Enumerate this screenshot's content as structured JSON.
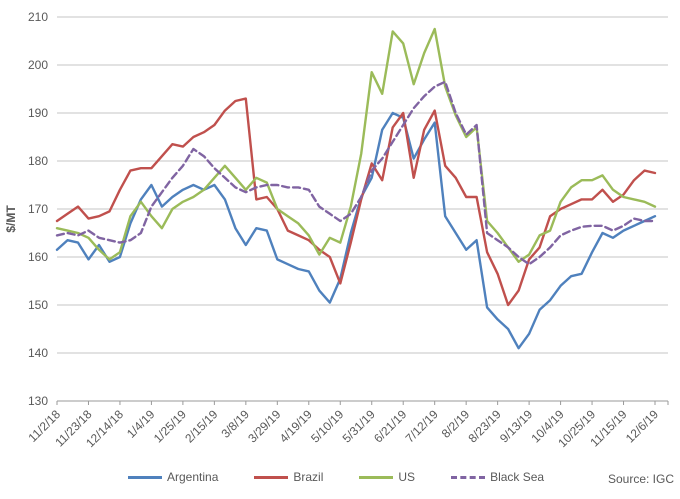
{
  "chart_data": {
    "type": "line",
    "title": "",
    "ylabel": "$/MT",
    "source_note": "Source: IGC",
    "ylim": [
      130,
      210
    ],
    "ytick_step": 10,
    "grid": true,
    "legend_position": "bottom",
    "x_tick_every": 3,
    "x": [
      "11/2/18",
      "11/9/18",
      "11/16/18",
      "11/23/18",
      "11/30/18",
      "12/7/18",
      "12/14/18",
      "12/21/18",
      "12/28/18",
      "1/4/19",
      "1/11/19",
      "1/18/19",
      "1/25/19",
      "2/1/19",
      "2/8/19",
      "2/15/19",
      "2/22/19",
      "3/1/19",
      "3/8/19",
      "3/15/19",
      "3/22/19",
      "3/29/19",
      "4/5/19",
      "4/12/19",
      "4/19/19",
      "4/26/19",
      "5/3/19",
      "5/10/19",
      "5/17/19",
      "5/24/19",
      "5/31/19",
      "6/7/19",
      "6/14/19",
      "6/21/19",
      "6/28/19",
      "7/5/19",
      "7/12/19",
      "7/19/19",
      "7/26/19",
      "8/2/19",
      "8/9/19",
      "8/16/19",
      "8/23/19",
      "8/30/19",
      "9/6/19",
      "9/13/19",
      "9/20/19",
      "9/27/19",
      "10/4/19",
      "10/11/19",
      "10/18/19",
      "10/25/19",
      "11/1/19",
      "11/8/19",
      "11/15/19",
      "11/22/19",
      "11/29/19",
      "12/6/19"
    ],
    "x_tick_labels": [
      "11/2/18",
      "11/23/18",
      "12/14/18",
      "1/4/19",
      "1/25/19",
      "2/15/19",
      "3/8/19",
      "3/29/19",
      "4/19/19",
      "5/10/19",
      "5/31/19",
      "6/21/19",
      "7/12/19",
      "8/2/19",
      "8/23/19",
      "9/13/19",
      "10/4/19",
      "10/25/19",
      "11/15/19",
      "12/6/19"
    ],
    "series": [
      {
        "name": "Argentina",
        "color": "#4F81BD",
        "style": "solid",
        "values": [
          161.5,
          163.5,
          163,
          159.5,
          162.5,
          159,
          160,
          167,
          172,
          175,
          170.5,
          172.5,
          174,
          175,
          174,
          175,
          172,
          166,
          162.5,
          166,
          165.5,
          159.5,
          158.5,
          157.5,
          157,
          153,
          150.5,
          155.5,
          165,
          172.5,
          176.5,
          186.5,
          190,
          189,
          180.5,
          184.5,
          188,
          168.5,
          165,
          161.5,
          163.5,
          149.5,
          147,
          145,
          141,
          144,
          149,
          151,
          154,
          156,
          156.5,
          161,
          165,
          164,
          165.5,
          166.5,
          167.5,
          168.5
        ]
      },
      {
        "name": "Brazil",
        "color": "#C0504D",
        "style": "solid",
        "values": [
          167.5,
          169,
          170.5,
          168,
          168.5,
          169.5,
          174,
          178,
          178.5,
          178.5,
          181,
          183.5,
          183,
          185,
          186,
          187.5,
          190.5,
          192.5,
          193,
          172,
          172.5,
          170,
          165.5,
          164.5,
          163.5,
          161.5,
          160,
          154.5,
          163,
          172,
          179.5,
          176,
          187,
          190,
          176.5,
          186.5,
          190.5,
          179,
          176.5,
          172.5,
          172.5,
          161,
          156.5,
          150,
          153,
          159.5,
          162,
          168.5,
          170,
          171,
          172,
          172,
          174,
          171.5,
          173,
          176,
          178,
          177.5
        ]
      },
      {
        "name": "US",
        "color": "#9BBB59",
        "style": "solid",
        "values": [
          166,
          165.5,
          165,
          164,
          161.5,
          159.5,
          161,
          168.5,
          171.5,
          168.5,
          166,
          170,
          171.5,
          172.5,
          174,
          176.5,
          179,
          176.5,
          174,
          176.5,
          175.5,
          170,
          168.5,
          167,
          164.5,
          160.5,
          164,
          163,
          170.5,
          181.5,
          198.5,
          194,
          207,
          204.5,
          196,
          202.5,
          207.5,
          195.5,
          189.5,
          185,
          187,
          167.5,
          165,
          162,
          159,
          160.5,
          164.5,
          165.5,
          171.5,
          174.5,
          176,
          176,
          177,
          174,
          172.5,
          172,
          171.5,
          170.5
        ]
      },
      {
        "name": "Black Sea",
        "color": "#8064A2",
        "style": "dashed",
        "values": [
          164.5,
          165,
          164.5,
          165.5,
          164,
          163.5,
          163,
          163.5,
          165,
          170.5,
          173.5,
          176.5,
          179,
          182.5,
          181,
          178.5,
          176.5,
          174.5,
          173.5,
          174.5,
          175,
          175,
          174.5,
          174.5,
          174,
          170.5,
          169,
          167.5,
          169,
          172.5,
          178,
          180.5,
          184,
          187.5,
          191,
          193.5,
          195.5,
          196.5,
          190,
          185.5,
          187.5,
          165,
          163.5,
          162,
          160,
          158.5,
          160,
          162,
          164.5,
          165.5,
          166.3,
          166.5,
          166.5,
          165.5,
          166.5,
          168,
          167.5,
          167.5
        ]
      }
    ]
  },
  "style": {
    "text_color": "#595959",
    "grid_color": "#c6c6c6",
    "axis_color": "#9a9a9a",
    "tick_font_px": 11,
    "line_width": 2.4
  }
}
